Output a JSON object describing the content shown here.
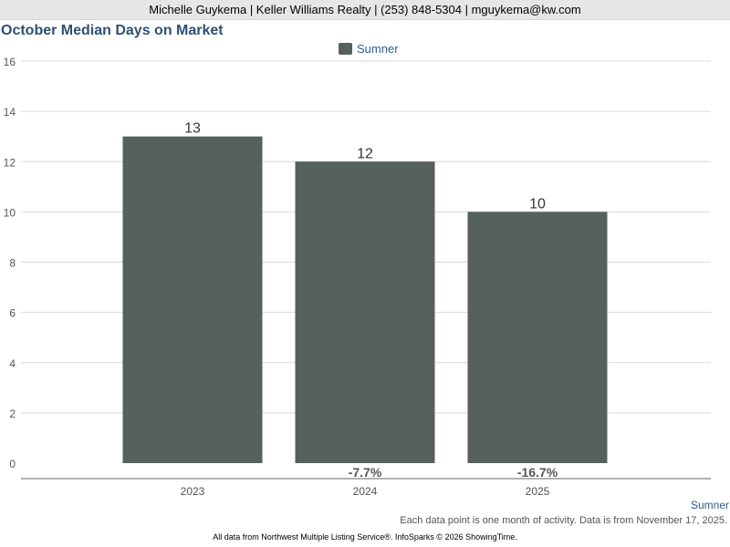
{
  "header": {
    "contact": "Michelle Guykema | Keller Williams Realty | (253) 848-5304 | mguykema@kw.com"
  },
  "chart_data": {
    "type": "bar",
    "title": "October Median Days on Market",
    "categories": [
      "2023",
      "2024",
      "2025"
    ],
    "series": [
      {
        "name": "Sumner",
        "values": [
          13,
          12,
          10
        ],
        "color": "#56605d"
      }
    ],
    "value_labels": [
      "13",
      "12",
      "10"
    ],
    "change_labels": [
      "",
      "-7.7%",
      "-16.7%"
    ],
    "yticks": [
      "0",
      "2",
      "4",
      "6",
      "8",
      "10",
      "12",
      "14",
      "16"
    ],
    "ylim": [
      0,
      16
    ],
    "grid": true,
    "legend_position": "top-center"
  },
  "region_label": "Sumner",
  "footnote": "Each data point is one month of activity. Data is from November 17, 2025.",
  "copyright": "All data from Northwest Multiple Listing Service®. InfoSparks © 2026 ShowingTime."
}
